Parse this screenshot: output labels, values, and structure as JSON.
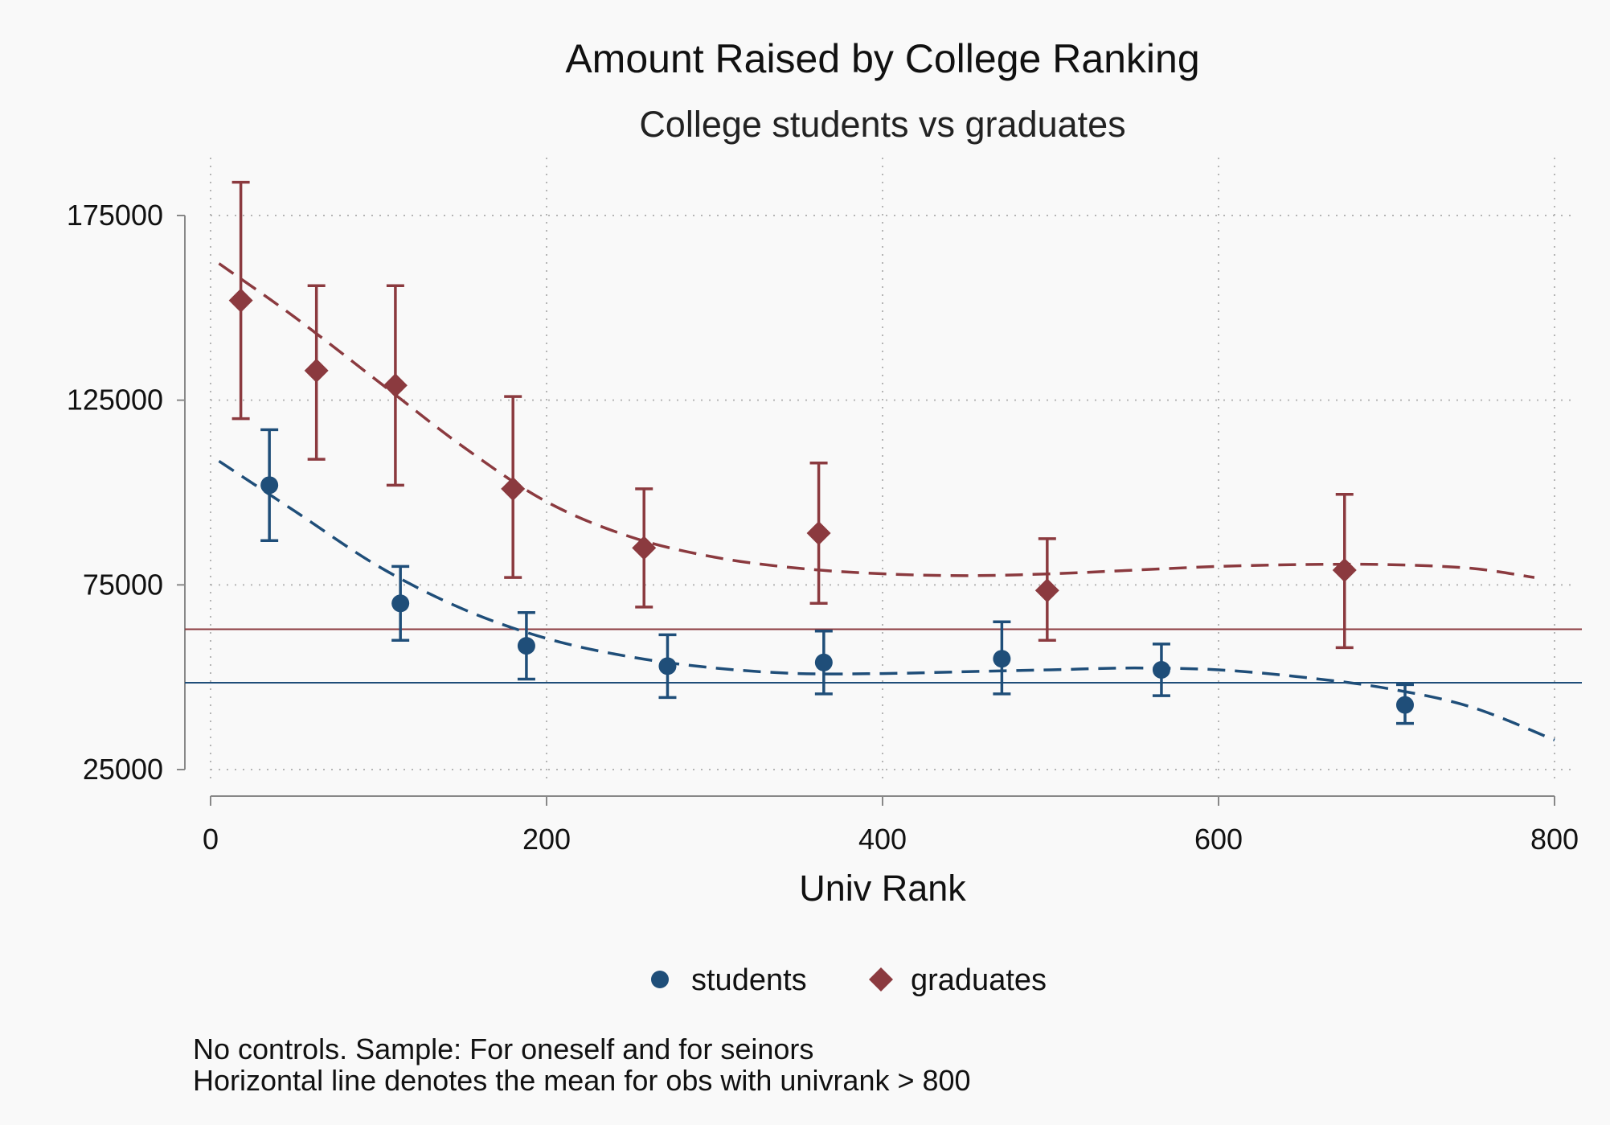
{
  "chart_data": {
    "type": "scatter",
    "title": "Amount Raised by College Ranking",
    "subtitle": "College students vs graduates",
    "xlabel": "Univ Rank",
    "ylabel": "",
    "xlim": [
      0,
      800
    ],
    "ylim": [
      25000,
      175000
    ],
    "xticks": [
      "0",
      "200",
      "400",
      "600",
      "800"
    ],
    "yticks": [
      "25000",
      "75000",
      "125000",
      "175000"
    ],
    "grid": true,
    "legend_position": "bottom",
    "notes": [
      "No controls. Sample: For oneself and for seinors",
      "Horizontal line denotes the mean for obs with univrank > 800"
    ],
    "series": [
      {
        "name": "students",
        "marker": "circle",
        "color": "#1f4e79",
        "points": [
          {
            "x": 35,
            "y": 102000,
            "lo": 87000,
            "hi": 117000
          },
          {
            "x": 113,
            "y": 70000,
            "lo": 60000,
            "hi": 80000
          },
          {
            "x": 188,
            "y": 58500,
            "lo": 49500,
            "hi": 67500
          },
          {
            "x": 272,
            "y": 53000,
            "lo": 44500,
            "hi": 61500
          },
          {
            "x": 365,
            "y": 54000,
            "lo": 45500,
            "hi": 62500
          },
          {
            "x": 471,
            "y": 55000,
            "lo": 45500,
            "hi": 65000
          },
          {
            "x": 566,
            "y": 52000,
            "lo": 45000,
            "hi": 59000
          },
          {
            "x": 711,
            "y": 42500,
            "lo": 37500,
            "hi": 48000
          }
        ],
        "fit": [
          [
            5,
            108500
          ],
          [
            50,
            95000
          ],
          [
            100,
            80000
          ],
          [
            150,
            68500
          ],
          [
            200,
            60500
          ],
          [
            250,
            55500
          ],
          [
            300,
            52500
          ],
          [
            350,
            51000
          ],
          [
            400,
            51000
          ],
          [
            450,
            51500
          ],
          [
            500,
            52000
          ],
          [
            550,
            52500
          ],
          [
            600,
            52000
          ],
          [
            650,
            50000
          ],
          [
            700,
            47000
          ],
          [
            750,
            42000
          ],
          [
            800,
            33000
          ]
        ],
        "mean_line": 48500
      },
      {
        "name": "graduates",
        "marker": "diamond",
        "color": "#8b3a3f",
        "points": [
          {
            "x": 18,
            "y": 152000,
            "lo": 120000,
            "hi": 184000
          },
          {
            "x": 63,
            "y": 133000,
            "lo": 109000,
            "hi": 156000
          },
          {
            "x": 110,
            "y": 129000,
            "lo": 102000,
            "hi": 156000
          },
          {
            "x": 180,
            "y": 101000,
            "lo": 77000,
            "hi": 126000
          },
          {
            "x": 258,
            "y": 85000,
            "lo": 69000,
            "hi": 101000
          },
          {
            "x": 362,
            "y": 89000,
            "lo": 70000,
            "hi": 108000
          },
          {
            "x": 498,
            "y": 73500,
            "lo": 60000,
            "hi": 87500
          },
          {
            "x": 675,
            "y": 79000,
            "lo": 58000,
            "hi": 99500
          }
        ],
        "fit": [
          [
            5,
            162000
          ],
          [
            50,
            147500
          ],
          [
            100,
            130000
          ],
          [
            150,
            112500
          ],
          [
            200,
            97500
          ],
          [
            250,
            88000
          ],
          [
            300,
            82500
          ],
          [
            350,
            79500
          ],
          [
            400,
            78000
          ],
          [
            450,
            77500
          ],
          [
            500,
            78000
          ],
          [
            550,
            79000
          ],
          [
            600,
            80000
          ],
          [
            650,
            80500
          ],
          [
            700,
            80500
          ],
          [
            750,
            79500
          ],
          [
            788,
            77000
          ]
        ],
        "mean_line": 63000
      }
    ]
  }
}
